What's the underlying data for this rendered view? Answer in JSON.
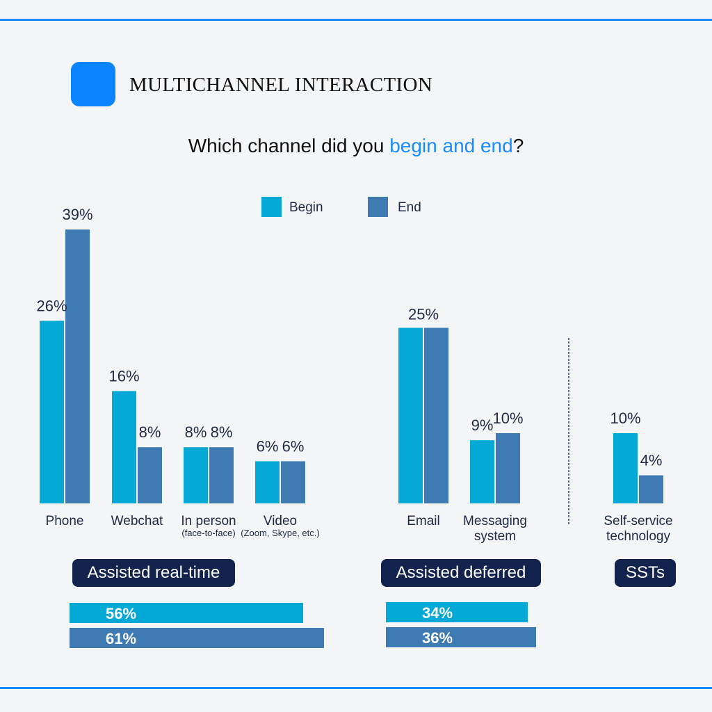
{
  "header": {
    "title": "MULTICHANNEL INTERACTION"
  },
  "question": {
    "before": "Which channel did you ",
    "highlight": "begin and end",
    "after": "?"
  },
  "colors": {
    "begin": "#06a9d6",
    "end": "#3f7ab2",
    "accent": "#1a8cff",
    "pill": "#14224e",
    "divider": "#1f3c7a"
  },
  "chart_data": [
    {
      "type": "bar",
      "series": [
        {
          "name": "Begin",
          "values": [
            26,
            16,
            8,
            6,
            25,
            9,
            10
          ]
        },
        {
          "name": "End",
          "values": [
            39,
            8,
            8,
            6,
            25,
            10,
            4
          ]
        }
      ],
      "categories": [
        {
          "label": "Phone",
          "sublabel": ""
        },
        {
          "label": "Webchat",
          "sublabel": ""
        },
        {
          "label": "In person",
          "sublabel": "(face-to-face)"
        },
        {
          "label": "Video",
          "sublabel": "(Zoom, Skype, etc.)"
        },
        {
          "label": "Email",
          "sublabel": ""
        },
        {
          "label": "Messaging",
          "sublabel": "system"
        },
        {
          "label": "Self-service",
          "sublabel": "technology"
        }
      ],
      "value_labels": {
        "begin": [
          "26%",
          "16%",
          "8%",
          "6%",
          "25%",
          "9%",
          "10%"
        ],
        "end": [
          "39%",
          "8%",
          "8%",
          "6%",
          "",
          "10%",
          "4%"
        ],
        "shared": [
          "",
          "",
          "",
          "",
          "25%",
          "",
          ""
        ]
      },
      "groups": [
        "Assisted real-time",
        "Assisted deferred",
        "SSTs"
      ],
      "legend": [
        "Begin",
        "End"
      ],
      "legend_position": "top"
    },
    {
      "type": "bar",
      "orientation": "horizontal",
      "categories": [
        "Assisted real-time",
        "Assisted deferred"
      ],
      "series": [
        {
          "name": "Begin",
          "values": [
            56,
            34
          ],
          "labels": [
            "56%",
            "34%"
          ]
        },
        {
          "name": "End",
          "values": [
            61,
            36
          ],
          "labels": [
            "61%",
            "36%"
          ]
        }
      ]
    }
  ]
}
